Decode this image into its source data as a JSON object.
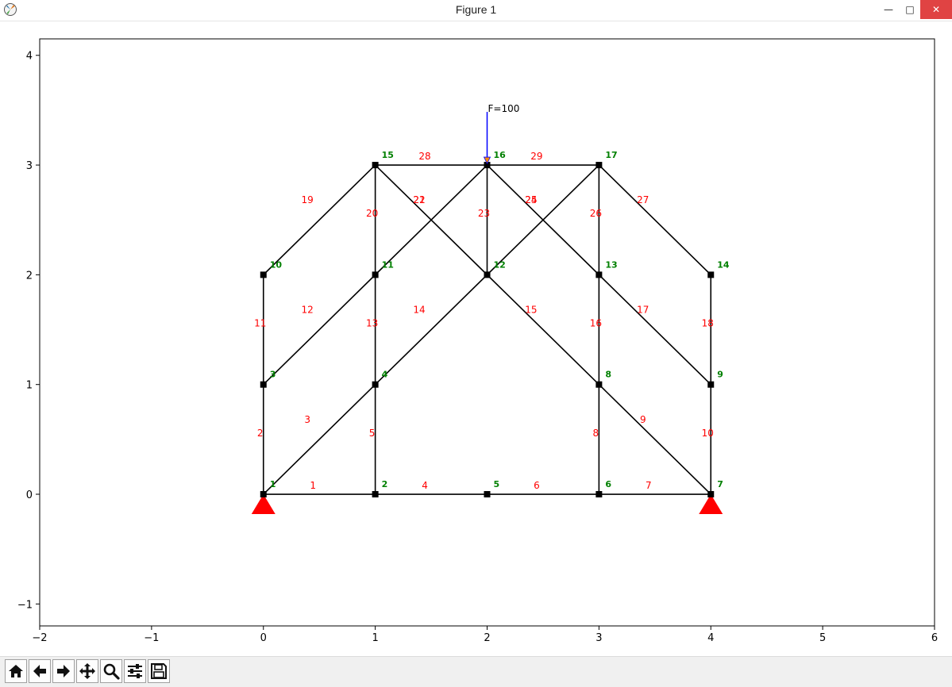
{
  "window": {
    "title": "Figure 1",
    "controls": {
      "minimize": "—",
      "maximize": "□",
      "close": "✕"
    }
  },
  "toolbar": {
    "buttons": [
      {
        "name": "home",
        "icon": "home-icon"
      },
      {
        "name": "back",
        "icon": "arrow-left-icon"
      },
      {
        "name": "forward",
        "icon": "arrow-right-icon"
      },
      {
        "name": "pan",
        "icon": "move-icon"
      },
      {
        "name": "zoom",
        "icon": "magnifier-icon"
      },
      {
        "name": "configure-subplots",
        "icon": "sliders-icon"
      },
      {
        "name": "save",
        "icon": "floppy-disk-icon"
      }
    ]
  },
  "chart_data": {
    "type": "truss-diagram",
    "xlim": [
      -2,
      6
    ],
    "ylim": [
      -1.2,
      4.15
    ],
    "xticks": [
      "−2",
      "−1",
      "0",
      "1",
      "2",
      "3",
      "4",
      "5",
      "6"
    ],
    "xtick_values": [
      -2,
      -1,
      0,
      1,
      2,
      3,
      4,
      5,
      6
    ],
    "yticks": [
      "−1",
      "0",
      "1",
      "2",
      "3",
      "4"
    ],
    "ytick_values": [
      -1,
      0,
      1,
      2,
      3,
      4
    ],
    "grid": false,
    "nodes": [
      {
        "id": "1",
        "x": 0,
        "y": 0
      },
      {
        "id": "2",
        "x": 1,
        "y": 0
      },
      {
        "id": "3",
        "x": 0,
        "y": 1
      },
      {
        "id": "4",
        "x": 1,
        "y": 1
      },
      {
        "id": "5",
        "x": 2,
        "y": 0
      },
      {
        "id": "6",
        "x": 3,
        "y": 0
      },
      {
        "id": "7",
        "x": 4,
        "y": 0
      },
      {
        "id": "8",
        "x": 3,
        "y": 1
      },
      {
        "id": "9",
        "x": 4,
        "y": 1
      },
      {
        "id": "10",
        "x": 0,
        "y": 2
      },
      {
        "id": "11",
        "x": 1,
        "y": 2
      },
      {
        "id": "12",
        "x": 2,
        "y": 2
      },
      {
        "id": "13",
        "x": 3,
        "y": 2
      },
      {
        "id": "14",
        "x": 4,
        "y": 2
      },
      {
        "id": "15",
        "x": 1,
        "y": 3
      },
      {
        "id": "16",
        "x": 2,
        "y": 3
      },
      {
        "id": "17",
        "x": 3,
        "y": 3
      }
    ],
    "members": [
      {
        "id": "1",
        "from": "1",
        "to": "2"
      },
      {
        "id": "2",
        "from": "1",
        "to": "3"
      },
      {
        "id": "3",
        "from": "1",
        "to": "4"
      },
      {
        "id": "4",
        "from": "2",
        "to": "5"
      },
      {
        "id": "5",
        "from": "2",
        "to": "4"
      },
      {
        "id": "6",
        "from": "5",
        "to": "6"
      },
      {
        "id": "7",
        "from": "6",
        "to": "7"
      },
      {
        "id": "8",
        "from": "6",
        "to": "8"
      },
      {
        "id": "9",
        "from": "8",
        "to": "7"
      },
      {
        "id": "10",
        "from": "7",
        "to": "9"
      },
      {
        "id": "11",
        "from": "3",
        "to": "10"
      },
      {
        "id": "12",
        "from": "3",
        "to": "11"
      },
      {
        "id": "13",
        "from": "4",
        "to": "11"
      },
      {
        "id": "14",
        "from": "4",
        "to": "12"
      },
      {
        "id": "15",
        "from": "12",
        "to": "8"
      },
      {
        "id": "16",
        "from": "8",
        "to": "13"
      },
      {
        "id": "17",
        "from": "13",
        "to": "9"
      },
      {
        "id": "18",
        "from": "9",
        "to": "14"
      },
      {
        "id": "19",
        "from": "10",
        "to": "15"
      },
      {
        "id": "20",
        "from": "11",
        "to": "15"
      },
      {
        "id": "21",
        "from": "15",
        "to": "12"
      },
      {
        "id": "22",
        "from": "11",
        "to": "16"
      },
      {
        "id": "23",
        "from": "12",
        "to": "16"
      },
      {
        "id": "24",
        "from": "16",
        "to": "13"
      },
      {
        "id": "25",
        "from": "12",
        "to": "17"
      },
      {
        "id": "26",
        "from": "13",
        "to": "17"
      },
      {
        "id": "27",
        "from": "17",
        "to": "14"
      },
      {
        "id": "28",
        "from": "15",
        "to": "16"
      },
      {
        "id": "29",
        "from": "16",
        "to": "17"
      }
    ],
    "supports": [
      {
        "node": "1",
        "type": "pin"
      },
      {
        "node": "7",
        "type": "pin"
      }
    ],
    "loads": [
      {
        "node": "16",
        "label": "F=100",
        "direction": "down"
      }
    ],
    "colors": {
      "member": "#000000",
      "node": "#000000",
      "node_label": "#008000",
      "member_label": "#ff0000",
      "support": "#ff0000",
      "load_arrow": "#0000ff",
      "load_arrow_head": "#ff8c00"
    }
  }
}
